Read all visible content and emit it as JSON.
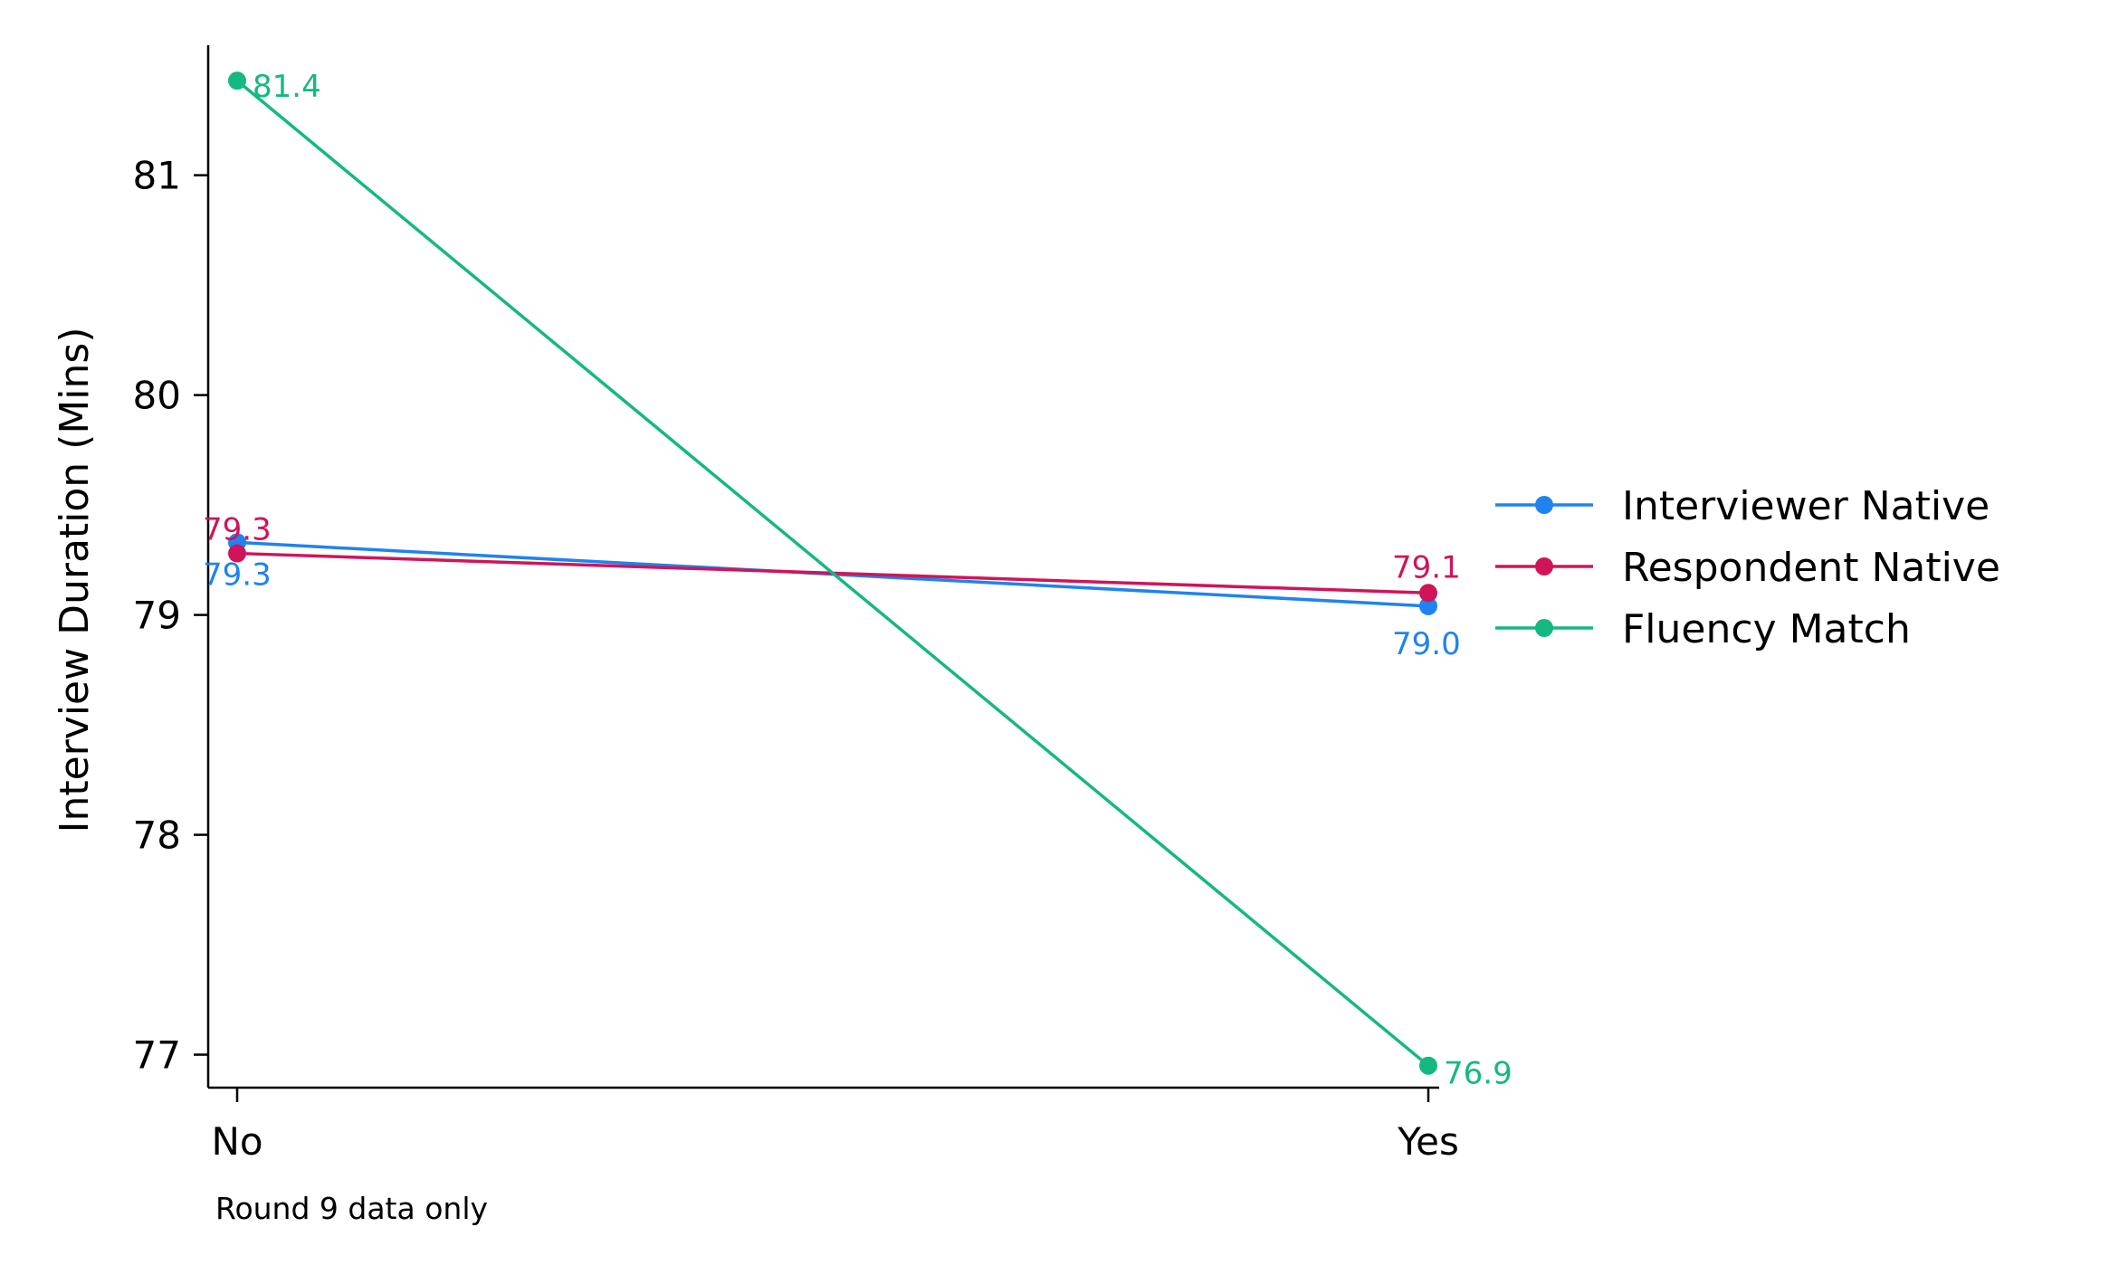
{
  "chart_data": {
    "type": "line",
    "title": "",
    "xlabel": "",
    "ylabel": "Interview Duration (Mins)",
    "note": "Round 9 data only",
    "categories": [
      "No",
      "Yes"
    ],
    "ylim": [
      76.85,
      81.55
    ],
    "yticks": [
      77,
      78,
      79,
      80,
      81
    ],
    "grid": false,
    "legend_position": "right",
    "series": [
      {
        "name": "Interviewer Native",
        "color": "#1f83f0",
        "values": [
          79.33,
          79.04
        ],
        "labels": [
          "79.3",
          "79.0"
        ]
      },
      {
        "name": "Respondent Native",
        "color": "#d0145a",
        "values": [
          79.28,
          79.1
        ],
        "labels": [
          "79.3",
          "79.1"
        ]
      },
      {
        "name": "Fluency Match",
        "color": "#13b981",
        "values": [
          81.43,
          76.95
        ],
        "labels": [
          "81.4",
          "76.9"
        ]
      }
    ]
  }
}
